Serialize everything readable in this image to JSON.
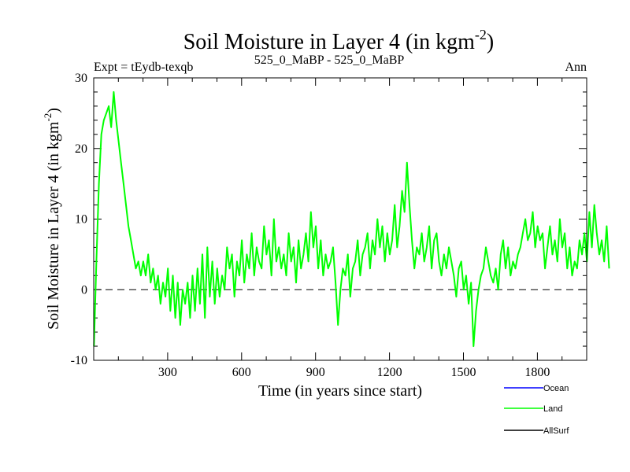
{
  "chart_data": {
    "type": "line",
    "title_main": "Soil Moisture in Layer 4 (in kgm",
    "title_exp": "-2",
    "title_close": ")",
    "experiment": "Expt = tEydb-texqb",
    "subtitle": "525_0_MaBP - 525_0_MaBP",
    "season": "Ann",
    "xlabel": "Time (in years since start)",
    "ylabel_main": "Soil Moisture in Layer 4 (in kgm",
    "ylabel_exp": "-2",
    "ylabel_close": ")",
    "xlim": [
      0,
      2000
    ],
    "ylim": [
      -10,
      30
    ],
    "xticks": [
      300,
      600,
      900,
      1200,
      1500,
      1800
    ],
    "yticks": [
      -10,
      0,
      10,
      20,
      30
    ],
    "reference_line": 0,
    "legend": [
      {
        "name": "Ocean",
        "color": "#0000ff"
      },
      {
        "name": "Land",
        "color": "#00ff00"
      },
      {
        "name": "AllSurf",
        "color": "#000000"
      }
    ],
    "series": [
      {
        "name": "Land",
        "color": "#00ff00",
        "x_start": 1,
        "x_step": 10,
        "values": [
          -8,
          4,
          15,
          22,
          24,
          25,
          26,
          23,
          28,
          24,
          21,
          18,
          15,
          12,
          9,
          7,
          5,
          3,
          4,
          2,
          4,
          2,
          5,
          1,
          3,
          0,
          2,
          -2,
          1,
          -1,
          3,
          -3,
          2,
          -4,
          1,
          -5,
          0,
          -2,
          1,
          -4,
          2,
          -3,
          3,
          -2,
          5,
          -4,
          6,
          -1,
          4,
          -2,
          3,
          -1,
          2,
          0,
          6,
          3,
          5,
          -1,
          4,
          2,
          7,
          1,
          5,
          3,
          8,
          2,
          6,
          4,
          3,
          9,
          5,
          7,
          2,
          10,
          4,
          6,
          3,
          5,
          2,
          8,
          4,
          6,
          1,
          7,
          3,
          5,
          8,
          4,
          11,
          6,
          9,
          3,
          7,
          2,
          5,
          3,
          4,
          6,
          1,
          -5,
          0,
          3,
          2,
          5,
          -1,
          3,
          4,
          7,
          2,
          5,
          6,
          8,
          3,
          7,
          5,
          10,
          6,
          9,
          4,
          8,
          5,
          7,
          12,
          6,
          9,
          14,
          11,
          18,
          12,
          7,
          3,
          6,
          5,
          8,
          4,
          6,
          9,
          3,
          7,
          8,
          4,
          2,
          5,
          3,
          6,
          4,
          2,
          -1,
          3,
          4,
          0,
          2,
          -2,
          1,
          -8,
          -3,
          0,
          2,
          3,
          6,
          4,
          2,
          1,
          3,
          0,
          5,
          7,
          3,
          6,
          2,
          4,
          3,
          5,
          6,
          8,
          10,
          7,
          8,
          11,
          6,
          9,
          7,
          8,
          3,
          6,
          9,
          5,
          7,
          4,
          10,
          6,
          8,
          3,
          6,
          2,
          4,
          3,
          7,
          5,
          8,
          4,
          11,
          6,
          12,
          8,
          5,
          7,
          4,
          9,
          3
        ]
      },
      {
        "name": "Zero reference",
        "color": "#000000",
        "values": [
          0
        ]
      }
    ]
  }
}
